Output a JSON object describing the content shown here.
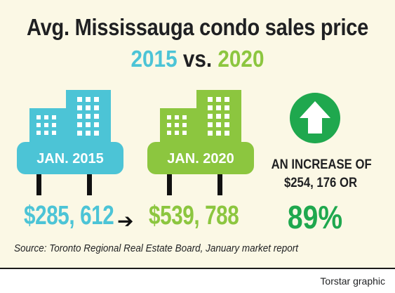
{
  "title": "Avg. Mississauga condo sales price",
  "subtitle": {
    "year_1": "2015",
    "vs": "vs.",
    "year_2": "2020"
  },
  "chart_data": {
    "type": "table",
    "title": "Avg. Mississauga condo sales price",
    "subtitle": "2015 vs. 2020",
    "categories": [
      "JAN. 2015",
      "JAN. 2020"
    ],
    "values": [
      285612,
      539788
    ],
    "value_labels": [
      "$285, 612",
      "$539, 788"
    ],
    "change": {
      "text_line1": "AN INCREASE OF",
      "text_line2": "$254, 176 OR",
      "amount": 254176,
      "percent_label": "89%",
      "percent": 89
    }
  },
  "buildings": [
    {
      "label": "JAN. 2015",
      "color": "#4cc4d6"
    },
    {
      "label": "JAN. 2020",
      "color": "#8cc63f"
    }
  ],
  "prices": [
    {
      "text": "$285, 612",
      "color": "#4cc4d6"
    },
    {
      "text": "$539, 788",
      "color": "#8cc63f"
    }
  ],
  "increase": {
    "line1": "AN INCREASE OF",
    "line2": "$254, 176 OR",
    "percent": "89%",
    "color": "#1fa84e",
    "icon": "up-arrow-icon"
  },
  "source": "Source: Toronto Regional Real Estate Board, January market report",
  "credit": "Torstar graphic"
}
